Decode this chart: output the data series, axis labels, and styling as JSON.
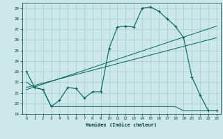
{
  "xlabel": "Humidex (Indice chaleur)",
  "background_color": "#cce8e8",
  "grid_color": "#aacfcf",
  "line_color": "#006060",
  "xlim": [
    -0.5,
    23.5
  ],
  "ylim": [
    19,
    29.5
  ],
  "yticks": [
    19,
    20,
    21,
    22,
    23,
    24,
    25,
    26,
    27,
    28,
    29
  ],
  "xticks": [
    0,
    1,
    2,
    3,
    4,
    5,
    6,
    7,
    8,
    9,
    10,
    11,
    12,
    13,
    14,
    15,
    16,
    17,
    18,
    19,
    20,
    21,
    22,
    23
  ],
  "series1_x": [
    0,
    1,
    2,
    3,
    4,
    5,
    6,
    7,
    8,
    9,
    10,
    11,
    12,
    13,
    14,
    15,
    16,
    17,
    18,
    19,
    20,
    21,
    22,
    23
  ],
  "series1_y": [
    23.0,
    21.5,
    21.3,
    19.7,
    20.3,
    21.5,
    21.4,
    20.5,
    21.1,
    21.1,
    25.2,
    27.2,
    27.3,
    27.2,
    29.0,
    29.1,
    28.7,
    28.0,
    27.3,
    26.2,
    22.5,
    20.8,
    19.3,
    19.3
  ],
  "series2_x": [
    0,
    1,
    2,
    3,
    4,
    5,
    6,
    7,
    8,
    9,
    10,
    11,
    12,
    13,
    14,
    15,
    16,
    17,
    18,
    19,
    20,
    21,
    22,
    23
  ],
  "series2_y": [
    22.0,
    21.5,
    21.3,
    19.7,
    19.7,
    19.7,
    19.7,
    19.7,
    19.7,
    19.7,
    19.7,
    19.7,
    19.7,
    19.7,
    19.7,
    19.7,
    19.7,
    19.7,
    19.7,
    19.3,
    19.3,
    19.3,
    19.3,
    19.3
  ],
  "series3_x": [
    0,
    23
  ],
  "series3_y": [
    21.5,
    26.2
  ],
  "series4_x": [
    0,
    23
  ],
  "series4_y": [
    21.3,
    27.3
  ]
}
